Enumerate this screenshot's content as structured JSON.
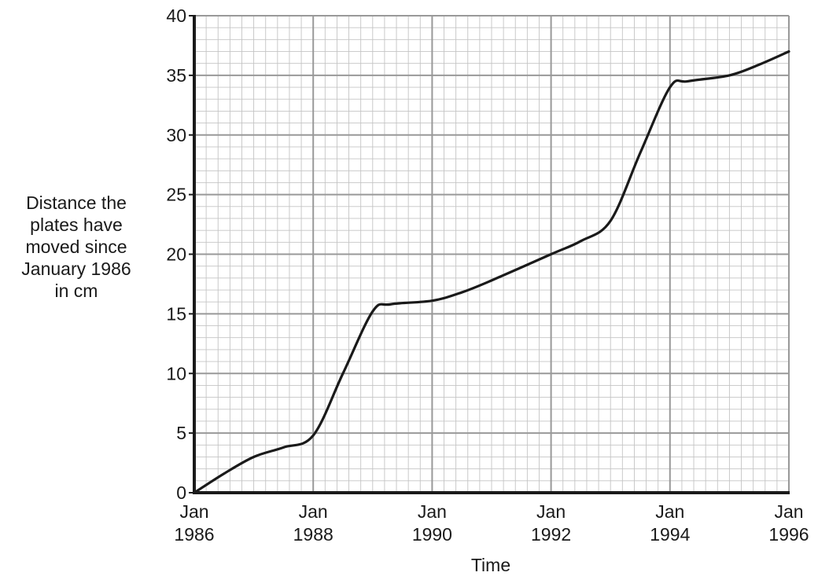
{
  "chart_data": {
    "type": "line",
    "title": "",
    "xlabel": "Time",
    "ylabel_lines": [
      "Distance the",
      "plates have",
      "moved since",
      "January 1986",
      "in cm"
    ],
    "xlim": [
      1986,
      1996
    ],
    "ylim": [
      0,
      40
    ],
    "x_ticks": [
      {
        "value": 1986,
        "line1": "Jan",
        "line2": "1986"
      },
      {
        "value": 1988,
        "line1": "Jan",
        "line2": "1988"
      },
      {
        "value": 1990,
        "line1": "Jan",
        "line2": "1990"
      },
      {
        "value": 1992,
        "line1": "Jan",
        "line2": "1992"
      },
      {
        "value": 1994,
        "line1": "Jan",
        "line2": "1994"
      },
      {
        "value": 1996,
        "line1": "Jan",
        "line2": "1996"
      }
    ],
    "y_ticks": [
      0,
      5,
      10,
      15,
      20,
      25,
      30,
      35,
      40
    ],
    "grid": true,
    "line_color": "#1a1a1a",
    "grid_color": "#999999",
    "series": [
      {
        "x": [
          1986,
          1986.5,
          1987,
          1987.5,
          1988,
          1988.5,
          1989,
          1989.3,
          1990,
          1990.5,
          1991,
          1992,
          1992.5,
          1993,
          1993.5,
          1994,
          1994.3,
          1995,
          1995.5,
          1996
        ],
        "y": [
          0,
          1.6,
          3.0,
          3.8,
          4.8,
          10.0,
          15.2,
          15.8,
          16.1,
          16.8,
          17.8,
          20.0,
          21.1,
          22.8,
          28.5,
          34.0,
          34.5,
          35.0,
          35.9,
          37.0
        ]
      }
    ]
  }
}
